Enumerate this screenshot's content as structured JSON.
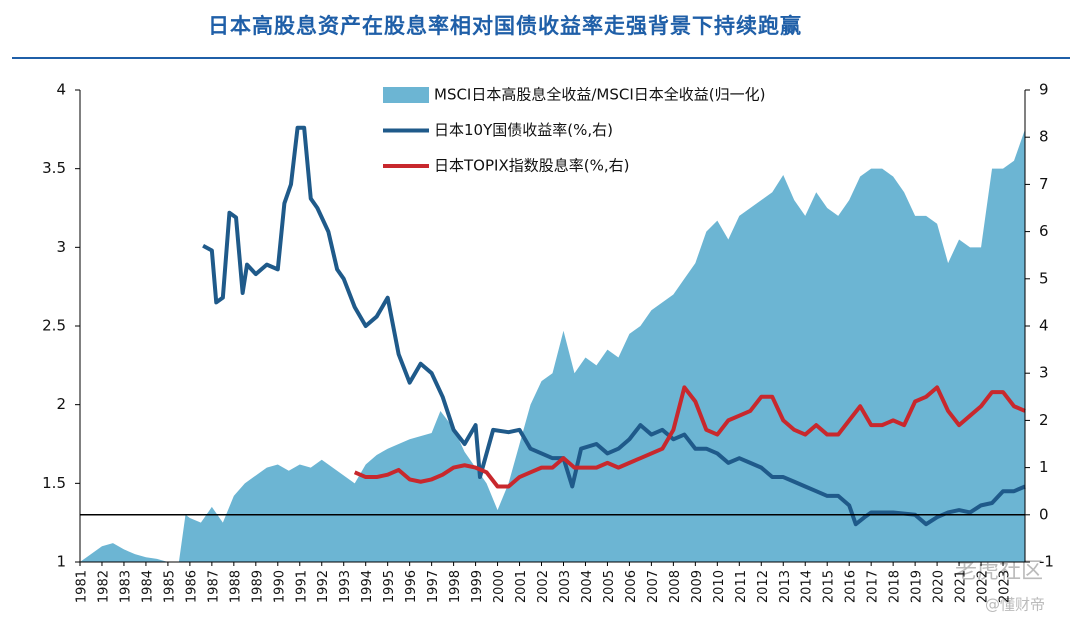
{
  "chart_data": {
    "type": "area-line",
    "title": "日本高股息资产在股息率相对国债收益率走强背景下持续跑赢",
    "annotations": [
      "老虎社区",
      "@懂财帝"
    ],
    "xlim": [
      1981,
      2024
    ],
    "xticks": [
      1981,
      1982,
      1983,
      1984,
      1985,
      1986,
      1987,
      1988,
      1989,
      1990,
      1991,
      1992,
      1993,
      1994,
      1995,
      1996,
      1997,
      1998,
      1999,
      2000,
      2001,
      2002,
      2003,
      2004,
      2005,
      2006,
      2007,
      2008,
      2009,
      2010,
      2011,
      2012,
      2013,
      2014,
      2015,
      2016,
      2017,
      2018,
      2019,
      2020,
      2021,
      2022,
      2023
    ],
    "ylim": [
      1,
      4
    ],
    "yticks": [
      1,
      1.5,
      2,
      2.5,
      3,
      3.5,
      4
    ],
    "y2lim": [
      -1,
      9
    ],
    "y2ticks": [
      -1,
      0,
      1,
      2,
      3,
      4,
      5,
      6,
      7,
      8,
      9
    ],
    "series": [
      {
        "name": "MSCI日本高股息全收益/MSCI日本全收益(归一化)",
        "color": "#6cb5d3",
        "kind": "area",
        "x": [
          1981,
          1981.5,
          1982,
          1982.5,
          1983,
          1983.5,
          1984,
          1984.5,
          1985,
          1985.5,
          1985.8,
          1986,
          1986.5,
          1987,
          1987.5,
          1988,
          1988.5,
          1989,
          1989.5,
          1990,
          1990.5,
          1991,
          1991.5,
          1992,
          1992.5,
          1993,
          1993.5,
          1994,
          1994.5,
          1995,
          1995.5,
          1996,
          1996.5,
          1997,
          1997.4,
          1998,
          1998.5,
          1999,
          1999.5,
          2000,
          2000.5,
          2001,
          2001.5,
          2002,
          2002.5,
          2003,
          2003.5,
          2004,
          2004.5,
          2005,
          2005.5,
          2006,
          2006.5,
          2007,
          2007.5,
          2008,
          2008.5,
          2009,
          2009.5,
          2010,
          2010.5,
          2011,
          2011.5,
          2012,
          2012.5,
          2013,
          2013.5,
          2014,
          2014.5,
          2015,
          2015.5,
          2016,
          2016.5,
          2017,
          2017.5,
          2018,
          2018.5,
          2019,
          2019.5,
          2020,
          2020.5,
          2021,
          2021.5,
          2022,
          2022.5,
          2023,
          2023.5,
          2024
        ],
        "values": [
          1.0,
          1.05,
          1.1,
          1.12,
          1.08,
          1.05,
          1.03,
          1.02,
          1.0,
          1.0,
          1.3,
          1.28,
          1.25,
          1.35,
          1.25,
          1.42,
          1.5,
          1.55,
          1.6,
          1.62,
          1.58,
          1.62,
          1.6,
          1.65,
          1.6,
          1.55,
          1.5,
          1.62,
          1.68,
          1.72,
          1.75,
          1.78,
          1.8,
          1.82,
          1.96,
          1.85,
          1.7,
          1.6,
          1.5,
          1.33,
          1.5,
          1.75,
          2.0,
          2.15,
          2.2,
          2.47,
          2.2,
          2.3,
          2.25,
          2.35,
          2.3,
          2.45,
          2.5,
          2.6,
          2.65,
          2.7,
          2.8,
          2.9,
          3.1,
          3.17,
          3.05,
          3.2,
          3.25,
          3.3,
          3.35,
          3.46,
          3.3,
          3.2,
          3.35,
          3.25,
          3.2,
          3.3,
          3.45,
          3.5,
          3.5,
          3.45,
          3.35,
          3.2,
          3.2,
          3.15,
          2.9,
          3.05,
          3.0,
          3.0,
          3.5,
          3.5,
          3.55,
          3.75
        ]
      },
      {
        "name": "日本10Y国债收益率(%,右)",
        "color": "#1f5a8a",
        "kind": "line",
        "axis": "y2",
        "x": [
          1986.6,
          1987,
          1987.2,
          1987.5,
          1987.8,
          1988.1,
          1988.4,
          1988.6,
          1989,
          1989.5,
          1990,
          1990.3,
          1990.6,
          1990.9,
          1991.2,
          1991.5,
          1991.8,
          1992.3,
          1992.7,
          1993,
          1993.5,
          1994,
          1994.5,
          1995,
          1995.5,
          1996,
          1996.5,
          1997,
          1997.5,
          1998,
          1998.5,
          1999,
          1999.2,
          1999.5,
          1999.8,
          2000.5,
          2001,
          2001.5,
          2002,
          2002.5,
          2003,
          2003.4,
          2003.8,
          2004.5,
          2005,
          2005.5,
          2006,
          2006.5,
          2007,
          2007.5,
          2008,
          2008.5,
          2009,
          2009.5,
          2010,
          2010.5,
          2011,
          2011.5,
          2012,
          2012.5,
          2013,
          2013.5,
          2014,
          2014.5,
          2015,
          2015.5,
          2016,
          2016.3,
          2016.7,
          2017,
          2018,
          2019,
          2019.5,
          2020,
          2020.5,
          2021,
          2021.5,
          2022,
          2022.5,
          2023,
          2023.5,
          2024
        ],
        "values": [
          5.7,
          5.6,
          4.5,
          4.6,
          6.4,
          6.3,
          4.7,
          5.3,
          5.1,
          5.3,
          5.2,
          6.6,
          7.0,
          8.2,
          8.2,
          6.7,
          6.5,
          6.0,
          5.2,
          5.0,
          4.4,
          4.0,
          4.2,
          4.6,
          3.4,
          2.8,
          3.2,
          3.0,
          2.5,
          1.8,
          1.5,
          1.9,
          0.8,
          1.3,
          1.8,
          1.75,
          1.8,
          1.4,
          1.3,
          1.2,
          1.2,
          0.6,
          1.4,
          1.5,
          1.3,
          1.4,
          1.6,
          1.9,
          1.7,
          1.8,
          1.6,
          1.7,
          1.4,
          1.4,
          1.3,
          1.1,
          1.2,
          1.1,
          1.0,
          0.8,
          0.8,
          0.7,
          0.6,
          0.5,
          0.4,
          0.4,
          0.2,
          -0.2,
          -0.05,
          0.05,
          0.05,
          0.0,
          -0.2,
          -0.05,
          0.05,
          0.1,
          0.05,
          0.2,
          0.25,
          0.5,
          0.5,
          0.6
        ]
      },
      {
        "name": "日本TOPIX指数股息率(%,右)",
        "color": "#c8282d",
        "kind": "line",
        "axis": "y2",
        "x": [
          1993.5,
          1994,
          1994.5,
          1995,
          1995.5,
          1996,
          1996.5,
          1997,
          1997.5,
          1998,
          1998.5,
          1999,
          1999.5,
          2000,
          2000.5,
          2001,
          2001.5,
          2002,
          2002.5,
          2003,
          2003.5,
          2004,
          2004.5,
          2005,
          2005.5,
          2006,
          2006.5,
          2007,
          2007.5,
          2008,
          2008.5,
          2009,
          2009.5,
          2010,
          2010.5,
          2011,
          2011.5,
          2012,
          2012.5,
          2013,
          2013.5,
          2014,
          2014.5,
          2015,
          2015.5,
          2016,
          2016.5,
          2017,
          2017.5,
          2018,
          2018.5,
          2019,
          2019.5,
          2020,
          2020.5,
          2021,
          2021.5,
          2022,
          2022.5,
          2023,
          2023.5,
          2024
        ],
        "values": [
          0.9,
          0.8,
          0.8,
          0.85,
          0.95,
          0.75,
          0.7,
          0.75,
          0.85,
          1.0,
          1.05,
          1.0,
          0.9,
          0.6,
          0.6,
          0.8,
          0.9,
          1.0,
          1.0,
          1.2,
          1.0,
          1.0,
          1.0,
          1.1,
          1.0,
          1.1,
          1.2,
          1.3,
          1.4,
          1.8,
          2.7,
          2.4,
          1.8,
          1.7,
          2.0,
          2.1,
          2.2,
          2.5,
          2.5,
          2.0,
          1.8,
          1.7,
          1.9,
          1.7,
          1.7,
          2.0,
          2.3,
          1.9,
          1.9,
          2.0,
          1.9,
          2.4,
          2.5,
          2.7,
          2.2,
          1.9,
          2.1,
          2.3,
          2.6,
          2.6,
          2.3,
          2.2
        ]
      }
    ]
  }
}
